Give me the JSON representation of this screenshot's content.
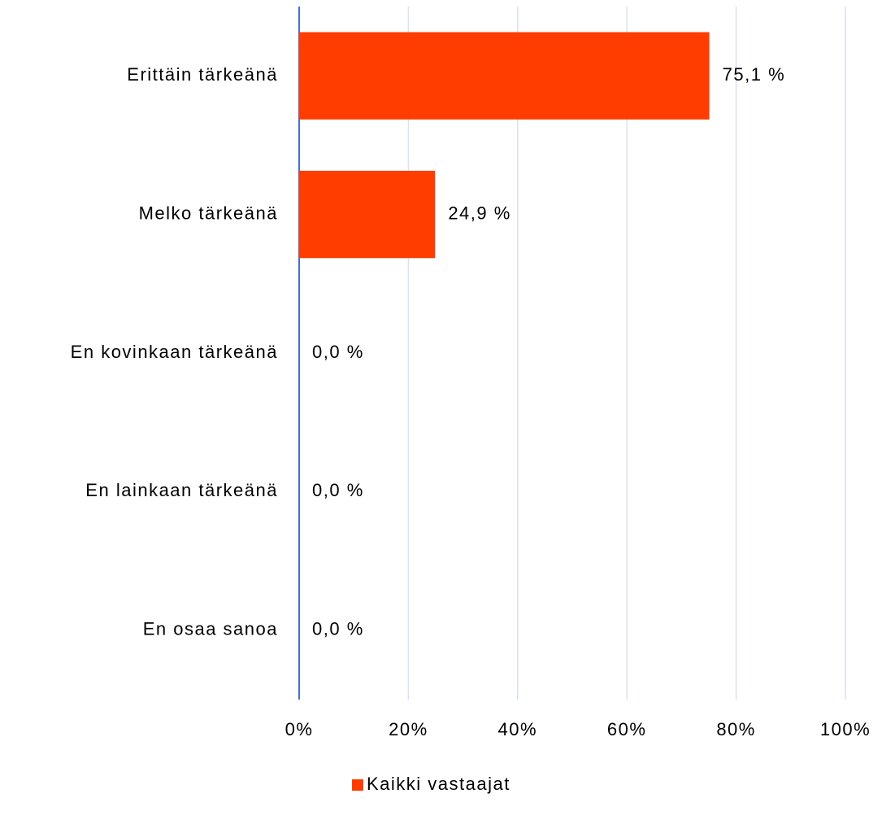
{
  "chart_data": {
    "type": "bar",
    "orientation": "horizontal",
    "categories": [
      "Erittäin tärkeänä",
      "Melko tärkeänä",
      "En kovinkaan tärkeänä",
      "En lainkaan tärkeänä",
      "En osaa sanoa"
    ],
    "series": [
      {
        "name": "Kaikki vastaajat",
        "color": "#ff3d00",
        "values": [
          75.1,
          24.9,
          0.0,
          0.0,
          0.0
        ],
        "value_labels": [
          "75,1 %",
          "24,9 %",
          "0,0 %",
          "0,0 %",
          "0,0 %"
        ]
      }
    ],
    "xlim": [
      0,
      100
    ],
    "xticks": [
      {
        "value": 0,
        "label": "0%"
      },
      {
        "value": 20,
        "label": "20%"
      },
      {
        "value": 40,
        "label": "40%"
      },
      {
        "value": 60,
        "label": "60%"
      },
      {
        "value": 80,
        "label": "80%"
      },
      {
        "value": 100,
        "label": "100%"
      }
    ],
    "grid": true,
    "legend": "bottom"
  }
}
